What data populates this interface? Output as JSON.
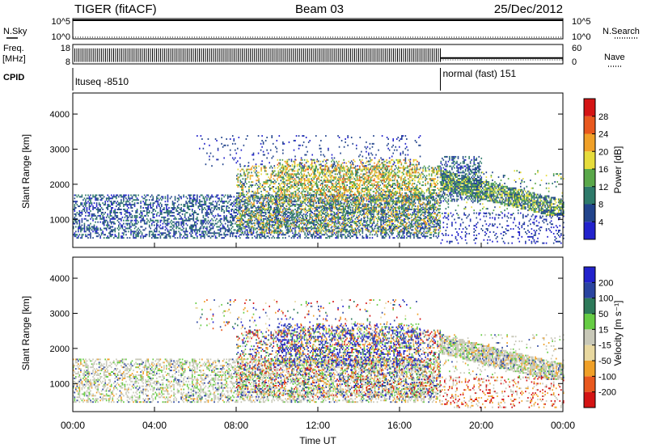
{
  "header": {
    "title_left": "TIGER (fitACF)",
    "title_center": "Beam 03",
    "title_right": "25/Dec/2012"
  },
  "strips": {
    "nsky": {
      "label": "N.Sky",
      "tick_top": "10^5",
      "tick_bottom": "10^0",
      "right_label": "N.Search",
      "right_tick_top": "10^5",
      "right_tick_bottom": "10^0"
    },
    "freq": {
      "label_line1": "Freq.",
      "label_line2": "[MHz]",
      "tick_top": "18",
      "tick_bottom": "8",
      "right_label": "Nave",
      "right_tick_top": "60",
      "right_tick_bottom": "0",
      "switch_time_h": 18.0,
      "high_freq_mhz": 16,
      "low_freq_mhz": 11
    },
    "cpid": {
      "label": "CPID",
      "segments": [
        {
          "start_h": 0,
          "end_h": 18.0,
          "text": "ltuseq -8510"
        },
        {
          "start_h": 18.0,
          "end_h": 24,
          "text": "normal (fast) 151"
        }
      ]
    }
  },
  "chart_data": [
    {
      "type": "heatmap",
      "name": "power",
      "ylabel": "Slant Range [km]",
      "xlabel": "",
      "ylim": [
        200,
        4600
      ],
      "yticks": [
        1000,
        2000,
        3000,
        4000
      ],
      "xlim": [
        0,
        24
      ],
      "colorbar": {
        "label": "Power [dB]",
        "ticks": [
          4,
          8,
          12,
          16,
          20,
          24,
          28
        ],
        "range": [
          0,
          32
        ],
        "colors": [
          "#2222cc",
          "#22448c",
          "#2e7a6a",
          "#5aa84a",
          "#e6dc3c",
          "#f0a028",
          "#e8581e",
          "#d41414"
        ]
      },
      "regions": [
        {
          "t": [
            0.0,
            18.0
          ],
          "r": [
            450,
            1700
          ],
          "density": 0.42,
          "values": [
            2,
            12
          ]
        },
        {
          "t": [
            8.0,
            18.0
          ],
          "r": [
            600,
            2500
          ],
          "density": 0.35,
          "values": [
            6,
            24
          ]
        },
        {
          "t": [
            10.0,
            17.0
          ],
          "r": [
            1500,
            2700
          ],
          "density": 0.3,
          "values": [
            10,
            26
          ]
        },
        {
          "t": [
            6.0,
            17.0
          ],
          "r": [
            2500,
            3400
          ],
          "density": 0.07,
          "values": [
            2,
            8
          ]
        },
        {
          "t": [
            18.0,
            20.0
          ],
          "r": [
            1500,
            2800
          ],
          "density": 0.4,
          "values": [
            2,
            12
          ]
        },
        {
          "t": [
            18.0,
            24.0
          ],
          "r": [
            1100,
            2400
          ],
          "density": 0.5,
          "values": [
            4,
            20
          ],
          "band": true
        },
        {
          "t": [
            18.0,
            24.0
          ],
          "r": [
            300,
            1200
          ],
          "density": 0.15,
          "values": [
            2,
            6
          ]
        }
      ]
    },
    {
      "type": "heatmap",
      "name": "velocity",
      "ylabel": "Slant Range [km]",
      "xlabel": "Time UT",
      "ylim": [
        200,
        4600
      ],
      "yticks": [
        1000,
        2000,
        3000,
        4000
      ],
      "xlim": [
        0,
        24
      ],
      "xticks": [
        "00:00",
        "04:00",
        "08:00",
        "12:00",
        "16:00",
        "20:00",
        "00:00"
      ],
      "colorbar": {
        "label": "Velocity [m s⁻¹]",
        "ticks": [
          200,
          100,
          50,
          15,
          -15,
          -50,
          -100,
          -200
        ],
        "colors": [
          "#2222cc",
          "#2a44a0",
          "#2e7a5a",
          "#66cc44",
          "#c8c8b8",
          "#e8d8a0",
          "#f0a028",
          "#e8581e",
          "#d41414"
        ]
      },
      "regions": [
        {
          "t": [
            0.0,
            18.0
          ],
          "r": [
            450,
            1700
          ],
          "density": 0.4,
          "kind": "grey"
        },
        {
          "t": [
            8.0,
            18.0
          ],
          "r": [
            600,
            2500
          ],
          "density": 0.33,
          "kind": "mixed"
        },
        {
          "t": [
            10.0,
            17.0
          ],
          "r": [
            1500,
            2700
          ],
          "density": 0.28,
          "kind": "blue"
        },
        {
          "t": [
            6.0,
            17.0
          ],
          "r": [
            2500,
            3400
          ],
          "density": 0.06,
          "kind": "mixed"
        },
        {
          "t": [
            18.0,
            24.0
          ],
          "r": [
            1100,
            2400
          ],
          "density": 0.5,
          "kind": "grey",
          "band": true
        },
        {
          "t": [
            18.0,
            24.0
          ],
          "r": [
            300,
            1200
          ],
          "density": 0.18,
          "kind": "red"
        }
      ]
    }
  ]
}
